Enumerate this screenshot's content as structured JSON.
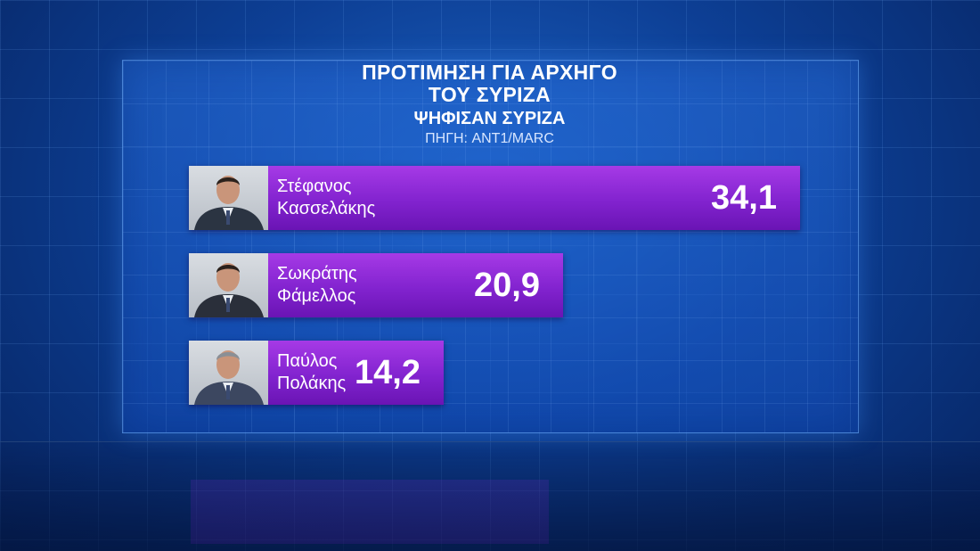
{
  "title": {
    "line1": "ΠΡΟΤΙΜΗΣΗ ΓΙΑ ΑΡΧΗΓΟ",
    "line2": "ΤΟΥ ΣΥΡΙΖΑ",
    "subtitle": "ΨΗΦΙΣΑΝ ΣΥΡΙΖΑ",
    "source": "ΠΗΓΗ: ANT1/MARC"
  },
  "chart_data": {
    "type": "bar",
    "orientation": "horizontal",
    "title": "ΠΡΟΤΙΜΗΣΗ ΓΙΑ ΑΡΧΗΓΟ ΤΟΥ ΣΥΡΙΖΑ",
    "subtitle": "ΨΗΦΙΣΑΝ ΣΥΡΙΖΑ",
    "categories": [
      {
        "first": "Στέφανος",
        "last": "Κασσελάκης"
      },
      {
        "first": "Σωκράτης",
        "last": "Φάμελλος"
      },
      {
        "first": "Παύλος",
        "last": "Πολάκης"
      }
    ],
    "values": [
      34.1,
      20.9,
      14.2
    ],
    "value_labels": [
      "34,1",
      "20,9",
      "14,2"
    ],
    "bar_color": "#8223cf",
    "grid": false,
    "legend": "none"
  }
}
